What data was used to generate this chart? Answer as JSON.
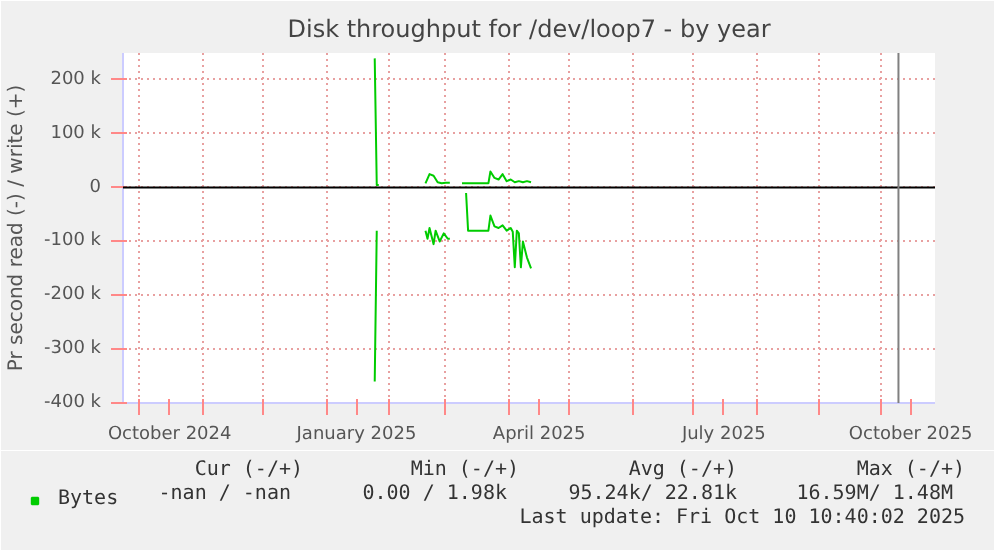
{
  "chart_data": {
    "type": "line",
    "title": "Disk throughput for /dev/loop7 - by year",
    "ylabel": "Pr second read (-) / write (+)",
    "xlim": [
      "2024-09-23",
      "2025-10-28"
    ],
    "ylim": [
      -400000,
      250000
    ],
    "xticks": [
      {
        "value": "2024-10-01",
        "label": null
      },
      {
        "value": "2024-10-16",
        "label": "October 2024"
      },
      {
        "value": "2024-11-01",
        "label": null
      },
      {
        "value": "2024-12-01",
        "label": null
      },
      {
        "value": "2025-01-01",
        "label": null
      },
      {
        "value": "2025-01-16",
        "label": "January 2025"
      },
      {
        "value": "2025-02-01",
        "label": null
      },
      {
        "value": "2025-03-01",
        "label": null
      },
      {
        "value": "2025-04-01",
        "label": null
      },
      {
        "value": "2025-04-16",
        "label": "April 2025"
      },
      {
        "value": "2025-05-01",
        "label": null
      },
      {
        "value": "2025-06-01",
        "label": null
      },
      {
        "value": "2025-07-01",
        "label": null
      },
      {
        "value": "2025-07-16",
        "label": "July 2025"
      },
      {
        "value": "2025-08-01",
        "label": null
      },
      {
        "value": "2025-09-01",
        "label": null
      },
      {
        "value": "2025-10-01",
        "label": null
      },
      {
        "value": "2025-10-16",
        "label": "October 2025"
      }
    ],
    "yticks": [
      {
        "value": -400000,
        "label": "-400 k"
      },
      {
        "value": -300000,
        "label": "-300 k"
      },
      {
        "value": -200000,
        "label": "-200 k"
      },
      {
        "value": -100000,
        "label": "-100 k"
      },
      0,
      {
        "value": 100000,
        "label": "100 k"
      },
      {
        "value": 200000,
        "label": "200 k"
      }
    ],
    "grid": true,
    "legend": "bottom left",
    "line_style": "solid",
    "marker": "none",
    "series": [
      {
        "name": "Bytes",
        "color": "#00cc00",
        "x": [
          "2025-01-25",
          "2025-01-26",
          "2025-01-27",
          "2025-02-10",
          "2025-02-19",
          "2025-02-21",
          "2025-02-23",
          "2025-02-25",
          "2025-02-27",
          "2025-03-01",
          "2025-03-03",
          "2025-03-06",
          "2025-03-09",
          "2025-03-11",
          "2025-03-19",
          "2025-03-22",
          "2025-03-23",
          "2025-03-25",
          "2025-03-27",
          "2025-03-29",
          "2025-03-31",
          "2025-04-02",
          "2025-04-04",
          "2025-04-06",
          "2025-04-08",
          "2025-04-10",
          "2025-04-12"
        ],
        "values": [
          240000,
          5000,
          5000,
          null,
          8000,
          25000,
          22000,
          10000,
          8000,
          9000,
          9000,
          null,
          8000,
          8000,
          8000,
          8000,
          30000,
          18000,
          15000,
          25000,
          12000,
          15000,
          10000,
          12000,
          10000,
          12000,
          10000
        ]
      },
      {
        "color": "#00cc00",
        "x": [
          "2025-01-25",
          "2025-01-26",
          "2025-02-10",
          "2025-02-19",
          "2025-02-20",
          "2025-02-21",
          "2025-02-23",
          "2025-02-24",
          "2025-02-26",
          "2025-02-28",
          "2025-03-02",
          "2025-03-03",
          "2025-03-06",
          "2025-03-11",
          "2025-03-12",
          "2025-03-22",
          "2025-03-23",
          "2025-03-25",
          "2025-03-27",
          "2025-03-29",
          "2025-03-31",
          "2025-04-02",
          "2025-04-03",
          "2025-04-04",
          "2025-04-05",
          "2025-04-06",
          "2025-04-07",
          "2025-04-08",
          "2025-04-10",
          "2025-04-12"
        ],
        "values": [
          -360000,
          -80000,
          null,
          -80000,
          -95000,
          -75000,
          -105000,
          -80000,
          -100000,
          -85000,
          -95000,
          -95000,
          null,
          -10000,
          -80000,
          -80000,
          -52000,
          -72000,
          -75000,
          -70000,
          -80000,
          -75000,
          -82000,
          -148000,
          -80000,
          -85000,
          -148000,
          -100000,
          -130000,
          -150000
        ]
      }
    ],
    "ref_lines": [
      {
        "axis": "y",
        "value": 0,
        "label": null,
        "color": "#000000"
      },
      {
        "axis": "x",
        "value": "2025-10-10",
        "label": null,
        "color": "#808080"
      }
    ],
    "annotations": [
      "Cur (-/+)",
      "Min (-/+)",
      "Avg (-/+)",
      "Max (-/+)",
      "-nan /  -nan",
      "0.00 /  1.98k",
      "95.24k/ 22.81k",
      "16.59M/  1.48M",
      "Last update: Fri Oct 10 10:40:02 2025"
    ]
  }
}
